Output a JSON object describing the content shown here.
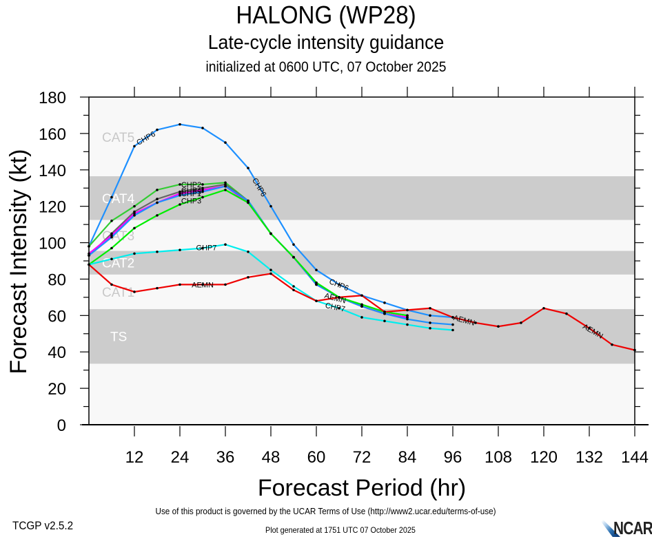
{
  "header": {
    "title": "HALONG (WP28)",
    "subtitle": "Late-cycle intensity guidance",
    "initialized": "initialized at 0600 UTC, 07 October 2025"
  },
  "footer": {
    "terms": "Use of this product is governed by the UCAR Terms of Use (http://www2.ucar.edu/terms-of-use)",
    "version": "TCGP v2.5.2",
    "generated": "Plot generated at 1751 UTC   07 October 2025",
    "logo": "NCAR"
  },
  "chart_data": {
    "type": "line",
    "title": "HALONG (WP28)",
    "subtitle": "Late-cycle intensity guidance",
    "xlabel": "Forecast Period (hr)",
    "ylabel": "Forecast Intensity (kt)",
    "xlim": [
      0,
      144
    ],
    "ylim": [
      0,
      180
    ],
    "xticks": [
      12,
      24,
      36,
      48,
      60,
      72,
      84,
      96,
      108,
      120,
      132,
      144
    ],
    "yticks": [
      0,
      20,
      40,
      60,
      80,
      100,
      120,
      140,
      160,
      180
    ],
    "grid": false,
    "bands": [
      {
        "label": "TS",
        "min": 34,
        "max": 63,
        "shaded": true
      },
      {
        "label": "CAT1",
        "min": 64,
        "max": 82,
        "shaded": false
      },
      {
        "label": "CAT2",
        "min": 83,
        "max": 95,
        "shaded": true
      },
      {
        "label": "CAT3",
        "min": 96,
        "max": 112,
        "shaded": false
      },
      {
        "label": "CAT4",
        "min": 113,
        "max": 136,
        "shaded": true
      },
      {
        "label": "CAT5",
        "min": 137,
        "max": 180,
        "shaded": false
      }
    ],
    "colors": {
      "band_shaded": "#cccccc",
      "band_light": "#f8f8f8"
    },
    "series": [
      {
        "name": "CHP6",
        "color": "#1e90ff",
        "x": [
          0,
          6,
          12,
          18,
          24,
          30,
          36,
          42,
          48,
          54,
          60,
          66,
          72,
          78,
          84,
          90,
          96
        ],
        "values": [
          98,
          125,
          153,
          162,
          165,
          163,
          155,
          141,
          120,
          99,
          85,
          77,
          71,
          67,
          63,
          60,
          59
        ],
        "labels": [
          {
            "x": 15,
            "text": "CHP6",
            "angle": -30
          },
          {
            "x": 45,
            "text": "CHP6",
            "angle": 60
          },
          {
            "x": 66,
            "text": "CHP6",
            "angle": 22
          }
        ]
      },
      {
        "name": "CHP2",
        "color": "#33cc33",
        "x": [
          0,
          6,
          12,
          18,
          24,
          30,
          36,
          42,
          48,
          54,
          60,
          66,
          72,
          78,
          84
        ],
        "values": [
          98,
          112,
          120,
          129,
          132,
          132,
          133,
          123,
          105,
          92,
          78,
          70,
          66,
          62,
          60
        ],
        "labels": [
          {
            "x": 27,
            "text": "CHP2",
            "angle": 0
          }
        ]
      },
      {
        "name": "CHP4",
        "color": "#666666",
        "x": [
          0,
          6,
          12,
          18,
          24,
          30,
          36,
          42,
          48,
          54,
          60,
          66,
          72,
          78,
          84
        ],
        "values": [
          93,
          105,
          117,
          124,
          128,
          130,
          132,
          123,
          105,
          92,
          77,
          70,
          65,
          61,
          59
        ],
        "labels": [
          {
            "x": 27,
            "text": "CHP4",
            "angle": 0
          }
        ]
      },
      {
        "name": "CHP5",
        "color": "#ff00ff",
        "x": [
          0,
          6,
          12,
          18,
          24,
          30,
          36,
          42,
          48,
          54,
          60,
          66,
          72,
          78,
          84
        ],
        "values": [
          94,
          104,
          116,
          122,
          127,
          129,
          131,
          122,
          105,
          92,
          77,
          70,
          65,
          61,
          59
        ],
        "labels": [
          {
            "x": 27,
            "text": "CHP5",
            "angle": 0
          }
        ]
      },
      {
        "name": "CHP1",
        "color": "#1e90ff",
        "x": [
          0,
          6,
          12,
          18,
          24,
          30,
          36,
          42,
          48,
          54,
          60,
          66,
          72,
          78,
          84,
          90,
          96
        ],
        "values": [
          93,
          103,
          115,
          122,
          126,
          128,
          131,
          123,
          105,
          92,
          77,
          70,
          65,
          61,
          58,
          56,
          55
        ],
        "labels": [
          {
            "x": 27,
            "text": "CHP1",
            "angle": 0
          }
        ]
      },
      {
        "name": "CHP3",
        "color": "#00ee00",
        "x": [
          0,
          6,
          12,
          18,
          24,
          30,
          36,
          42,
          48,
          54,
          60,
          66,
          72,
          78,
          84
        ],
        "values": [
          88,
          97,
          108,
          115,
          121,
          125,
          129,
          122,
          105,
          92,
          78,
          70,
          66,
          62,
          60
        ],
        "labels": [
          {
            "x": 27,
            "text": "CHP3",
            "angle": 0
          }
        ]
      },
      {
        "name": "GHP7",
        "color": "#00eeee",
        "x": [
          0,
          6,
          12,
          18,
          24,
          30,
          36,
          42,
          48,
          54,
          60,
          66,
          72,
          78,
          84,
          90,
          96
        ],
        "values": [
          88,
          91,
          94,
          95,
          96,
          97,
          99,
          95,
          85,
          76,
          68,
          64,
          59,
          57,
          55,
          53,
          52
        ],
        "labels": [
          {
            "x": 31,
            "text": "GHP7",
            "angle": 0
          },
          {
            "x": 65,
            "text": "CHP7",
            "angle": 12
          }
        ]
      },
      {
        "name": "AEMN",
        "color": "#ee0000",
        "x": [
          0,
          6,
          12,
          18,
          24,
          30,
          36,
          42,
          48,
          54,
          60,
          66,
          72,
          78,
          84,
          90,
          96,
          102,
          108,
          114,
          120,
          126,
          132,
          138,
          144
        ],
        "values": [
          88,
          77,
          73,
          75,
          77,
          77,
          77,
          81,
          83,
          74,
          68,
          70,
          71,
          62,
          63,
          64,
          59,
          56,
          54,
          56,
          64,
          61,
          53,
          44,
          41
        ],
        "labels": [
          {
            "x": 30,
            "text": "AEMN",
            "angle": 0
          },
          {
            "x": 65,
            "text": "AEMN",
            "angle": 15
          },
          {
            "x": 99,
            "text": "AEMN",
            "angle": 15
          },
          {
            "x": 133,
            "text": "AEMN",
            "angle": 30
          }
        ]
      }
    ]
  }
}
